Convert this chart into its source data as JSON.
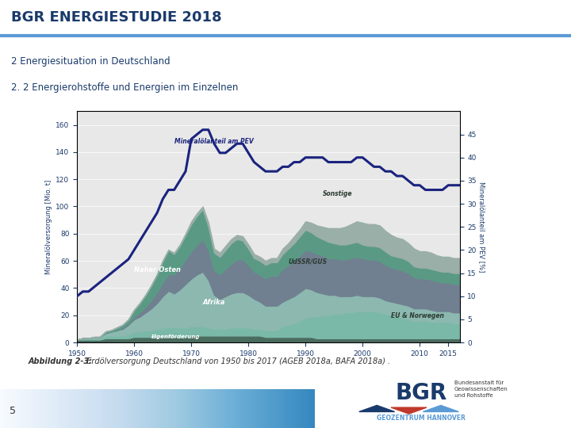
{
  "title": "BGR ENERGIESTUDIE 2018",
  "subtitle1": "2 Energiesituation in Deutschland",
  "subtitle2": "2. 2 Energierohstoffe und Energien im Einzelnen",
  "caption_bold": "Abbildung 2-3:",
  "caption_italic": "  Erdölversorgung Deutschland von 1950 bis 2017 (AGEB 2018a, BAFA 2018a) .",
  "page_number": "5",
  "ylabel_left": "Mineralölversorgung [Mio. t]",
  "ylabel_right": "Mineralölanteil am PEV [%]",
  "title_color": "#1a3a6b",
  "header_line_color": "#5b9bd5",
  "bg_color": "#ffffff",
  "chart_bg_color": "#e8e8e8",
  "years": [
    1950,
    1951,
    1952,
    1953,
    1954,
    1955,
    1956,
    1957,
    1958,
    1959,
    1960,
    1961,
    1962,
    1963,
    1964,
    1965,
    1966,
    1967,
    1968,
    1969,
    1970,
    1971,
    1972,
    1973,
    1974,
    1975,
    1976,
    1977,
    1978,
    1979,
    1980,
    1981,
    1982,
    1983,
    1984,
    1985,
    1986,
    1987,
    1988,
    1989,
    1990,
    1991,
    1992,
    1993,
    1994,
    1995,
    1996,
    1997,
    1998,
    1999,
    2000,
    2001,
    2002,
    2003,
    2004,
    2005,
    2006,
    2007,
    2008,
    2009,
    2010,
    2011,
    2012,
    2013,
    2014,
    2015,
    2016,
    2017
  ],
  "eigenfoerderung": [
    2,
    2,
    2,
    2,
    2,
    3,
    3,
    3,
    3,
    3,
    4,
    4,
    4,
    4,
    4,
    4,
    4,
    4,
    4,
    4,
    5,
    5,
    5,
    5,
    5,
    5,
    5,
    5,
    5,
    5,
    5,
    5,
    5,
    4,
    4,
    4,
    4,
    4,
    4,
    4,
    4,
    4,
    3,
    3,
    3,
    3,
    3,
    3,
    3,
    3,
    3,
    3,
    3,
    3,
    3,
    3,
    3,
    3,
    3,
    3,
    3,
    3,
    3,
    3,
    3,
    3,
    3,
    3
  ],
  "eu_norwegen": [
    0,
    1,
    1,
    1,
    1,
    2,
    2,
    2,
    2,
    3,
    4,
    4,
    5,
    5,
    6,
    7,
    7,
    7,
    7,
    7,
    7,
    7,
    7,
    6,
    5,
    5,
    5,
    6,
    6,
    6,
    6,
    5,
    5,
    5,
    5,
    5,
    8,
    9,
    10,
    12,
    14,
    15,
    16,
    17,
    17,
    18,
    18,
    19,
    19,
    20,
    20,
    20,
    20,
    19,
    18,
    17,
    16,
    15,
    14,
    13,
    13,
    13,
    12,
    12,
    12,
    12,
    11,
    11
  ],
  "afrika": [
    0,
    0,
    0,
    0,
    0,
    1,
    1,
    2,
    2,
    3,
    5,
    7,
    9,
    11,
    13,
    16,
    18,
    15,
    16,
    18,
    20,
    21,
    22,
    17,
    13,
    13,
    14,
    15,
    15,
    14,
    12,
    10,
    10,
    10,
    10,
    10,
    11,
    12,
    13,
    14,
    15,
    14,
    13,
    12,
    12,
    11,
    11,
    11,
    11,
    11,
    10,
    10,
    10,
    10,
    10,
    9,
    9,
    9,
    9,
    8,
    8,
    8,
    8,
    8,
    8,
    8,
    8,
    8
  ],
  "udssr_gus": [
    0,
    0,
    0,
    0,
    0,
    0,
    0,
    0,
    1,
    1,
    2,
    3,
    4,
    6,
    8,
    10,
    12,
    14,
    16,
    18,
    20,
    22,
    24,
    22,
    18,
    18,
    20,
    22,
    24,
    24,
    22,
    20,
    20,
    20,
    22,
    22,
    24,
    25,
    26,
    27,
    28,
    28,
    28,
    28,
    27,
    27,
    27,
    27,
    28,
    28,
    28,
    27,
    27,
    27,
    26,
    25,
    25,
    25,
    24,
    23,
    22,
    22,
    22,
    22,
    21,
    21,
    21,
    21
  ],
  "naher_osten": [
    0,
    0,
    0,
    1,
    1,
    2,
    3,
    4,
    5,
    7,
    9,
    11,
    13,
    16,
    19,
    23,
    27,
    25,
    28,
    32,
    35,
    38,
    40,
    35,
    25,
    22,
    24,
    25,
    26,
    26,
    24,
    22,
    20,
    18,
    18,
    18,
    18,
    19,
    20,
    21,
    22,
    20,
    18,
    16,
    15,
    14,
    13,
    12,
    12,
    12,
    11,
    11,
    11,
    11,
    10,
    10,
    10,
    10,
    10,
    9,
    9,
    9,
    9,
    8,
    8,
    8,
    8,
    8
  ],
  "sonstige": [
    0,
    0,
    0,
    0,
    0,
    0,
    0,
    0,
    0,
    0,
    0,
    0,
    0,
    0,
    0,
    0,
    0,
    1,
    1,
    1,
    2,
    2,
    2,
    3,
    3,
    3,
    3,
    3,
    3,
    3,
    3,
    3,
    3,
    3,
    3,
    3,
    4,
    4,
    5,
    5,
    6,
    7,
    8,
    9,
    10,
    11,
    12,
    13,
    14,
    15,
    16,
    16,
    16,
    16,
    15,
    15,
    14,
    14,
    13,
    13,
    12,
    12,
    12,
    11,
    11,
    11,
    11,
    11
  ],
  "mineraloel_anteil": [
    10,
    11,
    11,
    12,
    13,
    14,
    15,
    16,
    17,
    18,
    20,
    22,
    24,
    26,
    28,
    31,
    33,
    33,
    35,
    37,
    44,
    45,
    46,
    46,
    43,
    41,
    41,
    42,
    43,
    43,
    41,
    39,
    38,
    37,
    37,
    37,
    38,
    38,
    39,
    39,
    40,
    40,
    40,
    40,
    39,
    39,
    39,
    39,
    39,
    40,
    40,
    39,
    38,
    38,
    37,
    37,
    36,
    36,
    35,
    34,
    34,
    33,
    33,
    33,
    33,
    34,
    34,
    34
  ],
  "area_colors": {
    "eigenfoerderung": "#4a6b5e",
    "eu_norwegen": "#7ab8a8",
    "afrika": "#5a9a85",
    "udssr_gus": "#708090",
    "naher_osten": "#8cb8b0",
    "sonstige": "#9aafa8"
  },
  "line_color": "#1a237e",
  "ylim_left": [
    0,
    170
  ],
  "ylim_right": [
    0,
    50
  ],
  "yticks_left": [
    0,
    20,
    40,
    60,
    80,
    100,
    120,
    140,
    160
  ],
  "yticks_right": [
    0,
    5,
    10,
    15,
    20,
    25,
    30,
    35,
    40,
    45
  ],
  "xticks": [
    1950,
    1960,
    1970,
    1980,
    1990,
    2000,
    2010,
    2015
  ]
}
